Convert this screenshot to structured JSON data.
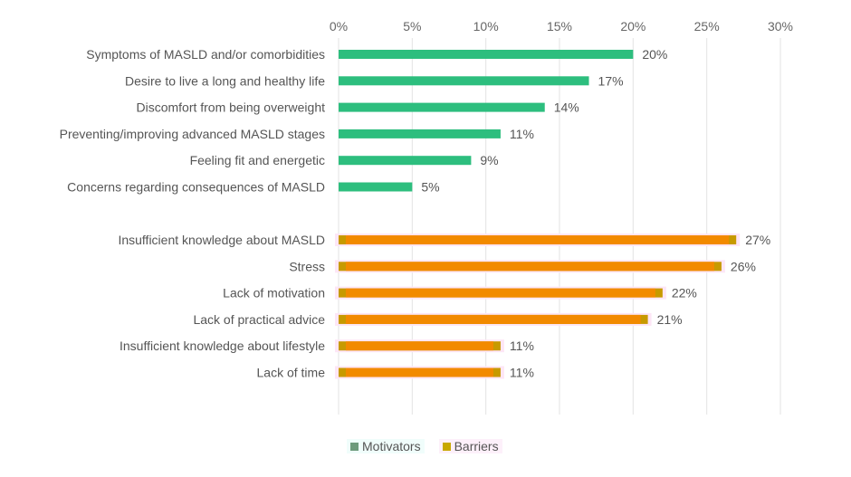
{
  "chart_data": {
    "type": "bar",
    "orientation": "horizontal",
    "title": "",
    "xlabel": "",
    "ylabel": "",
    "xlim": [
      0,
      30
    ],
    "x_ticks": [
      0,
      5,
      10,
      15,
      20,
      25,
      30
    ],
    "x_tick_labels": [
      "0%",
      "5%",
      "10%",
      "15%",
      "20%",
      "25%",
      "30%"
    ],
    "grid": "vertical",
    "legend_position": "bottom-left",
    "series": [
      {
        "name": "Motivators",
        "color": "#2dbe7e",
        "legend_color": "#6e9a7c",
        "categories": [
          "Symptoms of MASLD and/or comorbidities",
          "Desire to live a long and healthy life",
          "Discomfort from being overweight",
          "Preventing/improving advanced MASLD stages",
          "Feeling fit and energetic",
          "Concerns regarding consequences of MASLD"
        ],
        "values": [
          20,
          17,
          14,
          11,
          9,
          5
        ],
        "labels": [
          "20%",
          "17%",
          "14%",
          "11%",
          "9%",
          "5%"
        ]
      },
      {
        "name": "Barriers",
        "color": "#f28a00",
        "edge_color": "#c79a00",
        "legend_color": "#c8a800",
        "categories": [
          "Insufficient knowledge about MASLD",
          "Stress",
          "Lack of motivation",
          "Lack of practical advice",
          "Insufficient knowledge about lifestyle",
          "Lack of time"
        ],
        "values": [
          27,
          26,
          22,
          21,
          11,
          11
        ],
        "labels": [
          "27%",
          "26%",
          "22%",
          "21%",
          "11%",
          "11%"
        ]
      }
    ]
  },
  "legend": {
    "items": [
      {
        "label": "Motivators",
        "color": "#6e9a7c"
      },
      {
        "label": "Barriers",
        "color": "#c8a800"
      }
    ]
  }
}
